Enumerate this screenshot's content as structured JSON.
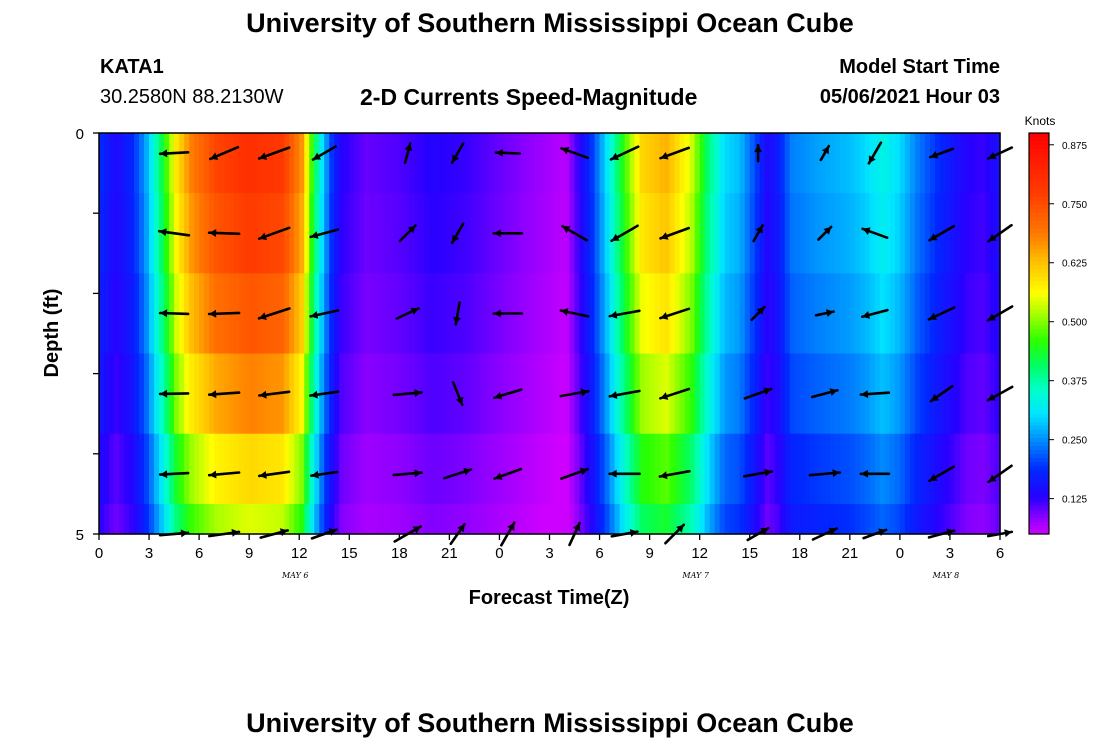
{
  "header": {
    "title": "University of Southern Mississippi Ocean Cube",
    "station_id": "KATA1",
    "station_coords": "30.2580N  88.2130W",
    "product": "2-D Currents Speed-Magnitude",
    "model_start_label": "Model Start Time",
    "model_start_value": "05/06/2021 Hour 03"
  },
  "footer": {
    "title": "University of Southern Mississippi Ocean Cube"
  },
  "chart_data": {
    "type": "heatmap",
    "title": "2-D Currents Speed-Magnitude",
    "xlabel": "Forecast Time(Z)",
    "ylabel": "Depth (ft)",
    "x_tick_labels": [
      "0",
      "3",
      "6",
      "9",
      "12",
      "15",
      "18",
      "21",
      "0",
      "3",
      "6",
      "9",
      "12",
      "15",
      "18",
      "21",
      "0",
      "3",
      "6"
    ],
    "x_range_hours": [
      0,
      54
    ],
    "date_labels": [
      {
        "label": "MAY 6",
        "hour": 12
      },
      {
        "label": "MAY 7",
        "hour": 36
      },
      {
        "label": "MAY 8",
        "hour": 51
      }
    ],
    "y_tick_labels": [
      "0",
      "5"
    ],
    "ylim": [
      0,
      5
    ],
    "depth_rows": [
      0.25,
      1.25,
      2.25,
      3.25,
      4.25,
      5.0
    ],
    "colorbar": {
      "label": "Knots",
      "ticks": [
        "0.875",
        "0.750",
        "0.625",
        "0.500",
        "0.375",
        "0.250",
        "0.125"
      ],
      "range": [
        0.05,
        0.9
      ]
    },
    "speed_profile": [
      [
        0,
        0.19
      ],
      [
        1,
        0.14
      ],
      [
        2,
        0.18
      ],
      [
        2.8,
        0.26
      ],
      [
        3.4,
        0.36
      ],
      [
        4,
        0.46
      ],
      [
        4.6,
        0.58
      ],
      [
        5.5,
        0.68
      ],
      [
        7,
        0.76
      ],
      [
        9,
        0.8
      ],
      [
        11,
        0.78
      ],
      [
        12.2,
        0.66
      ],
      [
        12.8,
        0.45
      ],
      [
        13.4,
        0.3
      ],
      [
        13.9,
        0.2
      ],
      [
        14.5,
        0.13
      ],
      [
        16,
        0.1
      ],
      [
        18,
        0.11
      ],
      [
        20,
        0.13
      ],
      [
        22,
        0.12
      ],
      [
        24,
        0.1
      ],
      [
        26,
        0.08
      ],
      [
        27,
        0.07
      ],
      [
        28,
        0.06
      ],
      [
        28.7,
        0.12
      ],
      [
        29.6,
        0.2
      ],
      [
        30.4,
        0.3
      ],
      [
        31.4,
        0.45
      ],
      [
        32.5,
        0.6
      ],
      [
        34,
        0.64
      ],
      [
        35.5,
        0.54
      ],
      [
        36.5,
        0.4
      ],
      [
        37.5,
        0.3
      ],
      [
        38.4,
        0.28
      ],
      [
        39.4,
        0.2
      ],
      [
        40,
        0.14
      ],
      [
        40.6,
        0.16
      ],
      [
        41.5,
        0.24
      ],
      [
        43,
        0.26
      ],
      [
        45,
        0.28
      ],
      [
        46,
        0.3
      ],
      [
        47,
        0.33
      ],
      [
        48,
        0.3
      ],
      [
        49,
        0.24
      ],
      [
        50.5,
        0.18
      ],
      [
        52,
        0.13
      ],
      [
        53,
        0.12
      ],
      [
        54,
        0.15
      ]
    ],
    "depth_factor": [
      1.0,
      0.97,
      0.92,
      0.85,
      0.75,
      0.68
    ],
    "arrow_columns_hours": [
      4.5,
      7.5,
      10.5,
      13.5,
      18.5,
      21.5,
      24.5,
      28.5,
      31.5,
      34.5,
      39.5,
      43.5,
      46.5,
      50.5,
      54
    ],
    "arrow_directions_deg": [
      [
        183,
        203,
        200,
        210,
        75,
        240,
        178,
        160,
        205,
        200,
        90,
        60,
        240,
        200,
        205
      ],
      [
        172,
        178,
        200,
        195,
        45,
        240,
        180,
        150,
        210,
        200,
        60,
        45,
        160,
        210,
        215
      ],
      [
        178,
        182,
        198,
        192,
        25,
        260,
        180,
        168,
        190,
        198,
        45,
        12,
        195,
        205,
        210
      ],
      [
        181,
        184,
        187,
        188,
        5,
        292,
        197,
        10,
        190,
        198,
        20,
        15,
        184,
        215,
        209
      ],
      [
        183,
        185,
        188,
        188,
        5,
        18,
        200,
        20,
        180,
        190,
        10,
        5,
        180,
        210,
        215
      ],
      [
        5,
        8,
        15,
        20,
        30,
        55,
        60,
        65,
        10,
        45,
        30,
        25,
        20,
        15,
        10
      ]
    ],
    "arrow_lengths": [
      [
        28,
        30,
        32,
        26,
        20,
        22,
        24,
        28,
        30,
        30,
        16,
        16,
        24,
        24,
        26
      ],
      [
        30,
        30,
        32,
        28,
        22,
        22,
        28,
        28,
        30,
        30,
        18,
        18,
        26,
        28,
        28
      ],
      [
        28,
        30,
        32,
        28,
        24,
        22,
        28,
        28,
        30,
        30,
        18,
        18,
        26,
        28,
        28
      ],
      [
        28,
        30,
        30,
        28,
        28,
        24,
        28,
        28,
        30,
        30,
        28,
        26,
        28,
        26,
        28
      ],
      [
        28,
        30,
        30,
        26,
        28,
        28,
        28,
        28,
        30,
        30,
        28,
        30,
        28,
        28,
        28
      ],
      [
        28,
        30,
        28,
        26,
        30,
        24,
        26,
        24,
        26,
        26,
        24,
        26,
        24,
        26,
        24
      ]
    ]
  }
}
